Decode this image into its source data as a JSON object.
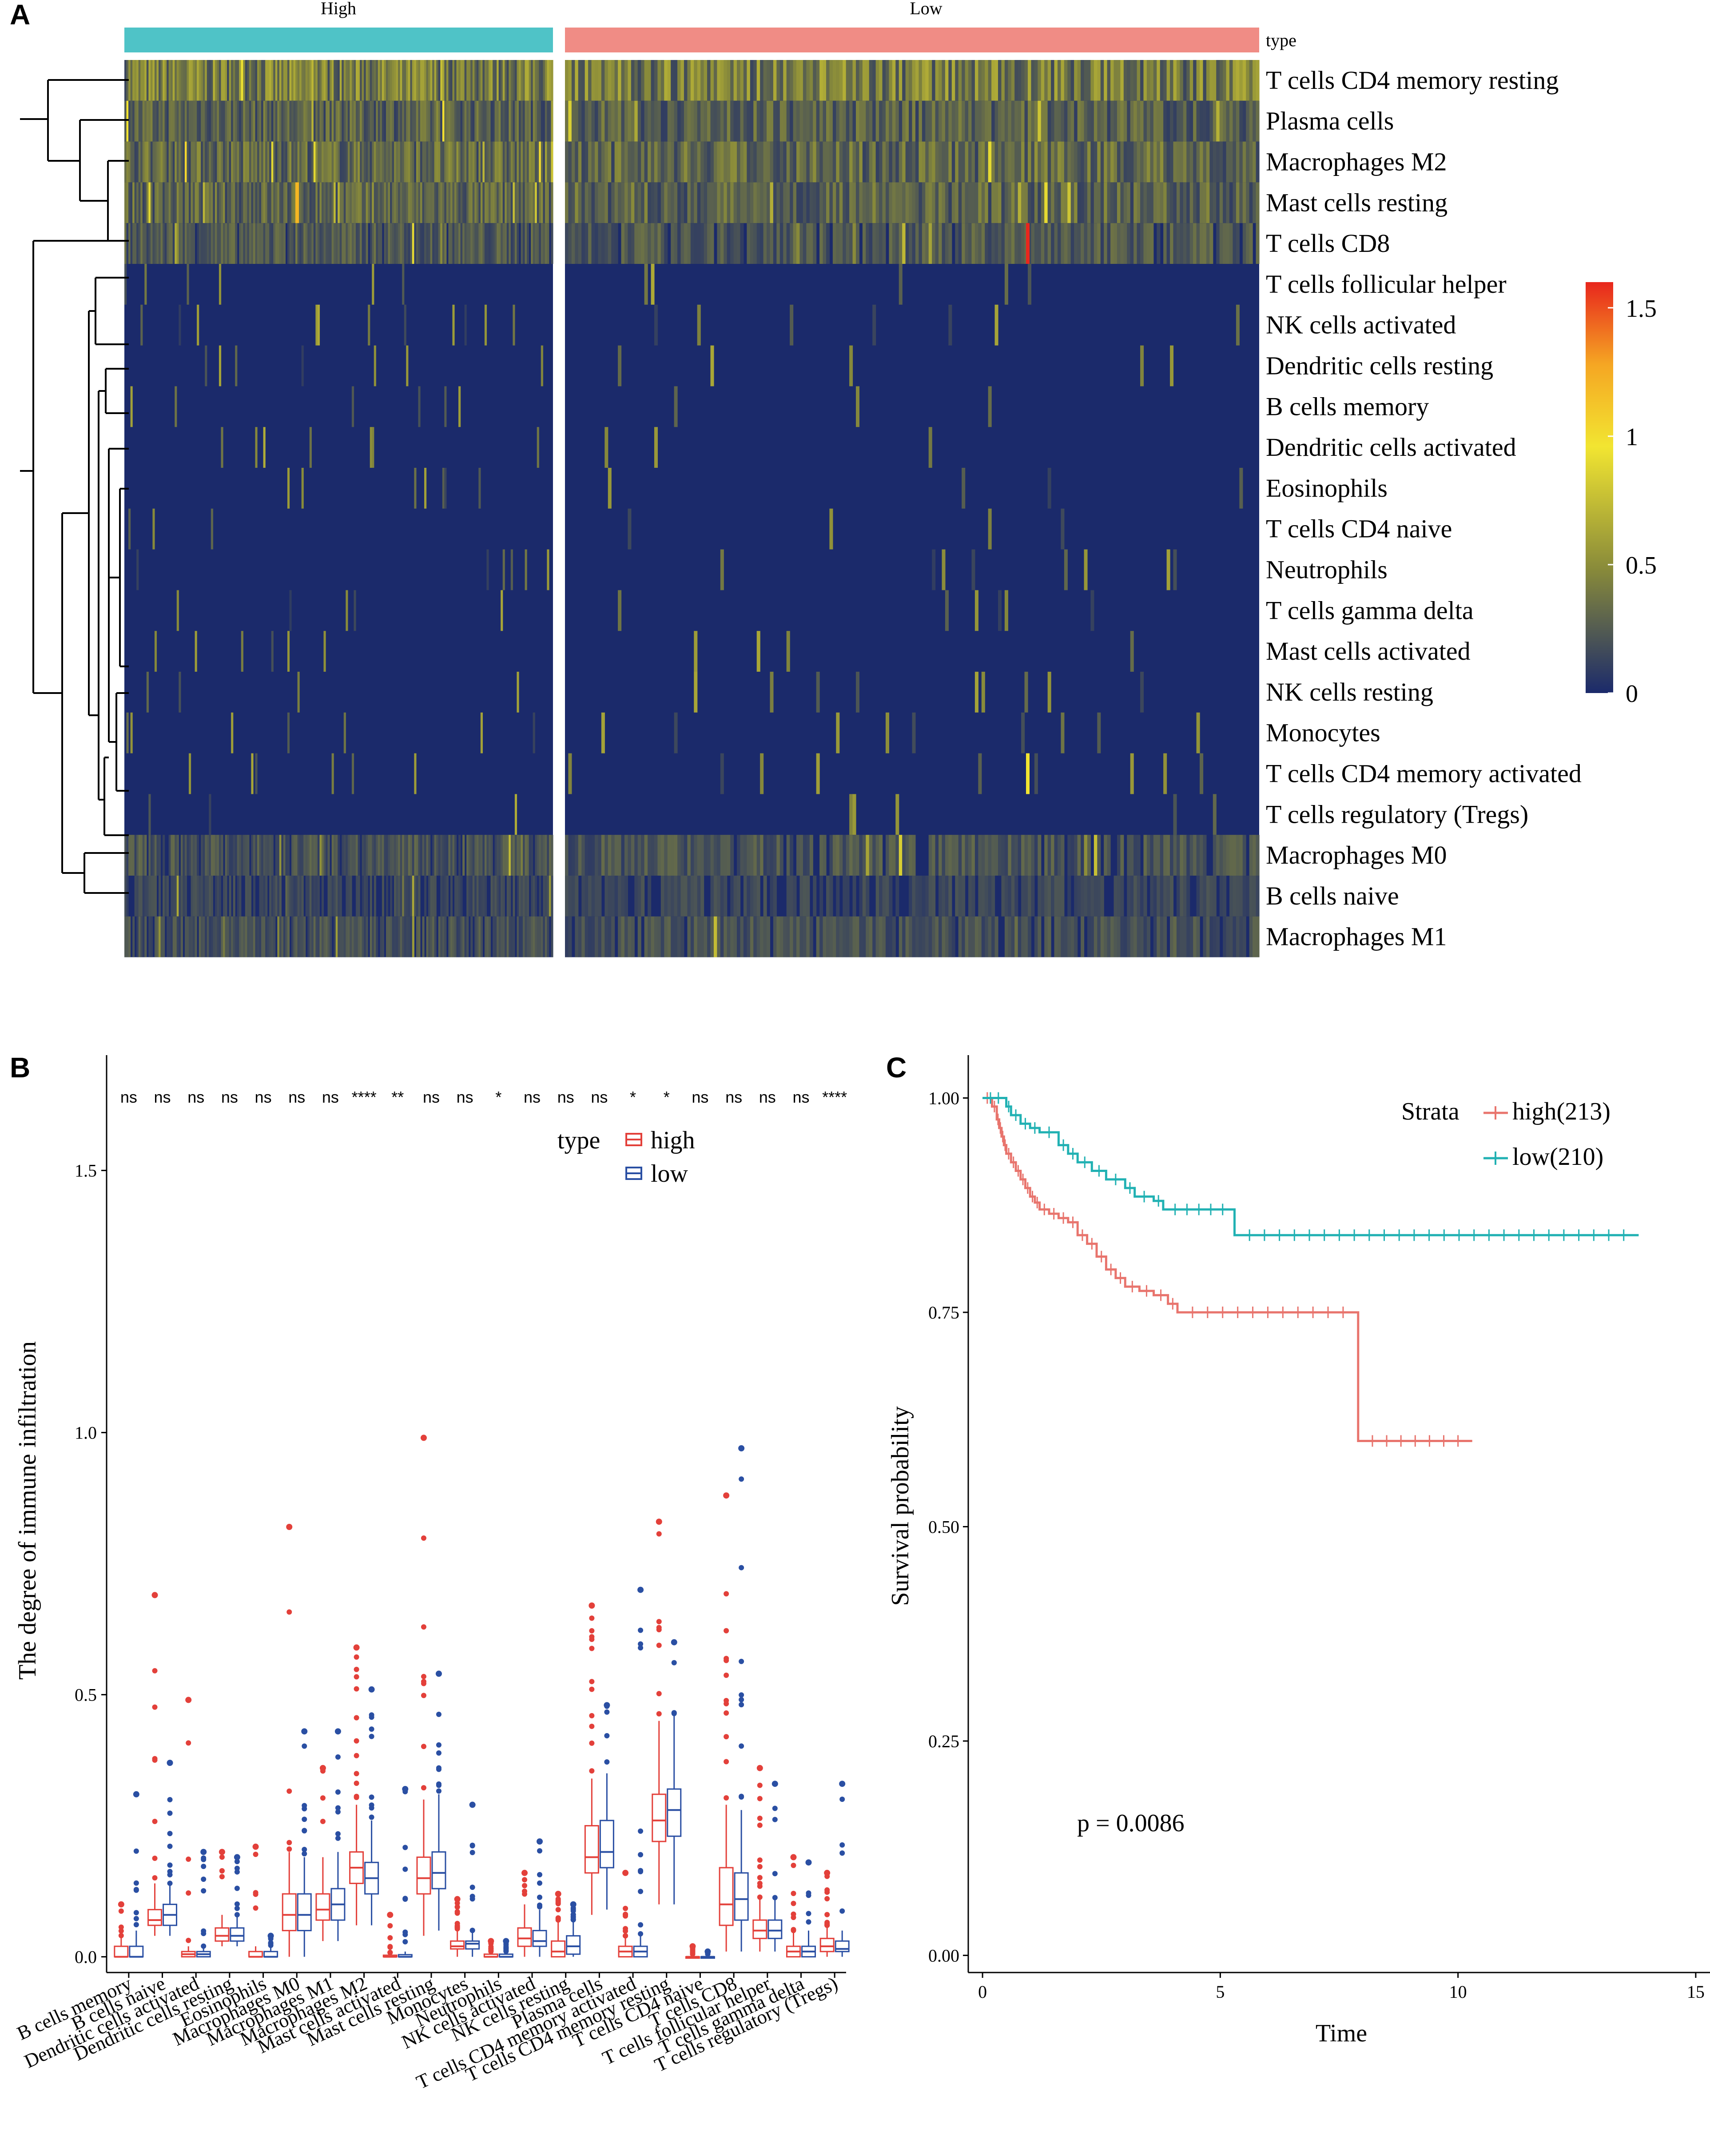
{
  "chart_data": [
    {
      "panel": "A",
      "type": "heatmap",
      "groups": [
        {
          "label": "High",
          "color": "#4fc3c7",
          "samples": 213
        },
        {
          "label": "Low",
          "color": "#f08c85",
          "samples": 210
        }
      ],
      "annotation_label": "type",
      "rows": [
        "T cells CD4 memory resting",
        "Plasma cells",
        "Macrophages M2",
        "Mast cells resting",
        "T cells CD8",
        "T cells follicular helper",
        "NK cells activated",
        "Dendritic cells resting",
        "B cells memory",
        "Dendritic cells activated",
        "Eosinophils",
        "T cells CD4 naive",
        "Neutrophils",
        "T cells gamma delta",
        "Mast cells activated",
        "NK cells resting",
        "Monocytes",
        "T cells CD4 memory activated",
        "T cells regulatory (Tregs)",
        "Macrophages M0",
        "B cells naive",
        "Macrophages M1"
      ],
      "row_intensity": [
        0.45,
        0.3,
        0.35,
        0.32,
        0.25,
        0.06,
        0.06,
        0.04,
        0.05,
        0.04,
        0.03,
        0.03,
        0.03,
        0.03,
        0.04,
        0.04,
        0.05,
        0.05,
        0.06,
        0.22,
        0.15,
        0.2
      ],
      "colorbar": {
        "ticks": [
          "1.5",
          "1",
          "0.5",
          "0"
        ],
        "values": [
          1.5,
          1,
          0.5,
          0
        ],
        "min": 0,
        "max": 1.6,
        "colors": [
          "#1b2a6b",
          "#888a3a",
          "#f2e531",
          "#f5a623",
          "#e8261d"
        ]
      }
    },
    {
      "panel": "B",
      "type": "box",
      "ylabel": "The degree of immune infiltration",
      "yticks": [
        "0.0",
        "0.5",
        "1.0",
        "1.5"
      ],
      "ytick_values": [
        0.0,
        0.5,
        1.0,
        1.5
      ],
      "ylim": [
        -0.03,
        1.72
      ],
      "legend": {
        "title": "type",
        "entries": [
          "high",
          "low"
        ]
      },
      "colors": {
        "high": "#e3403a",
        "low": "#2a4fa3"
      },
      "categories": [
        "B cells memory",
        "B cells naive",
        "Dendritic cells activated",
        "Dendritic cells resting",
        "Eosinophils",
        "Macrophages M0",
        "Macrophages M1",
        "Macrophages M2",
        "Mast cells activated",
        "Mast cells resting",
        "Monocytes",
        "Neutrophils",
        "NK cells activated",
        "NK cells resting",
        "Plasma cells",
        "T cells CD4 memory activated",
        "T cells CD4 memory resting",
        "T cells CD4 naive",
        "T cells CD8",
        "T cells follicular helper",
        "T cells gamma delta",
        "T cells regulatory (Tregs)"
      ],
      "significance": [
        "ns",
        "ns",
        "ns",
        "ns",
        "ns",
        "ns",
        "ns",
        "****",
        "**",
        "ns",
        "ns",
        "*",
        "ns",
        "ns",
        "ns",
        "*",
        "*",
        "ns",
        "ns",
        "ns",
        "ns",
        "****"
      ],
      "series": [
        {
          "name": "high",
          "boxes": [
            [
              0,
              0,
              0,
              0.02,
              0.04
            ],
            [
              0.04,
              0.06,
              0.07,
              0.09,
              0.14
            ],
            [
              0,
              0,
              0.005,
              0.01,
              0.02
            ],
            [
              0.02,
              0.03,
              0.04,
              0.055,
              0.08
            ],
            [
              0,
              0,
              0,
              0.01,
              0.02
            ],
            [
              0,
              0.05,
              0.08,
              0.12,
              0.2
            ],
            [
              0.03,
              0.07,
              0.09,
              0.12,
              0.19
            ],
            [
              0.06,
              0.14,
              0.17,
              0.2,
              0.29
            ],
            [
              0,
              0,
              0,
              0.003,
              0.008
            ],
            [
              0.04,
              0.12,
              0.15,
              0.19,
              0.3
            ],
            [
              0,
              0.015,
              0.02,
              0.03,
              0.05
            ],
            [
              0,
              0,
              0,
              0.005,
              0.01
            ],
            [
              0,
              0.02,
              0.035,
              0.055,
              0.1
            ],
            [
              0,
              0,
              0.01,
              0.03,
              0.07
            ],
            [
              0.08,
              0.16,
              0.19,
              0.25,
              0.34
            ],
            [
              0,
              0,
              0.01,
              0.02,
              0.04
            ],
            [
              0.1,
              0.22,
              0.26,
              0.31,
              0.45
            ],
            [
              0,
              0,
              0,
              0,
              0.005
            ],
            [
              0.01,
              0.06,
              0.1,
              0.17,
              0.29
            ],
            [
              0.01,
              0.035,
              0.05,
              0.07,
              0.11
            ],
            [
              0,
              0,
              0.01,
              0.02,
              0.05
            ],
            [
              0,
              0.01,
              0.02,
              0.035,
              0.06
            ]
          ],
          "outliers": [
            0.1,
            0.69,
            0.49,
            0.2,
            0.21,
            0.82,
            0.36,
            0.59,
            0.08,
            0.99,
            0.11,
            0.03,
            0.16,
            0.12,
            0.67,
            0.16,
            0.83,
            0.02,
            0.88,
            0.36,
            0.19,
            0.16
          ]
        },
        {
          "name": "low",
          "boxes": [
            [
              0,
              0,
              0,
              0.02,
              0.05
            ],
            [
              0.04,
              0.06,
              0.08,
              0.1,
              0.14
            ],
            [
              0,
              0,
              0.005,
              0.01,
              0.02
            ],
            [
              0.02,
              0.03,
              0.04,
              0.055,
              0.08
            ],
            [
              0,
              0,
              0,
              0.01,
              0.02
            ],
            [
              0,
              0.05,
              0.08,
              0.12,
              0.19
            ],
            [
              0.03,
              0.07,
              0.1,
              0.13,
              0.2
            ],
            [
              0.06,
              0.12,
              0.15,
              0.18,
              0.26
            ],
            [
              0,
              0,
              0,
              0.004,
              0.01
            ],
            [
              0.05,
              0.13,
              0.16,
              0.2,
              0.31
            ],
            [
              0,
              0.015,
              0.025,
              0.03,
              0.05
            ],
            [
              0,
              0,
              0,
              0.005,
              0.01
            ],
            [
              0,
              0.02,
              0.03,
              0.05,
              0.09
            ],
            [
              0,
              0.005,
              0.02,
              0.04,
              0.07
            ],
            [
              0.09,
              0.17,
              0.2,
              0.26,
              0.35
            ],
            [
              0,
              0,
              0.01,
              0.02,
              0.04
            ],
            [
              0.1,
              0.23,
              0.28,
              0.32,
              0.46
            ],
            [
              0,
              0,
              0,
              0,
              0.005
            ],
            [
              0.01,
              0.07,
              0.11,
              0.16,
              0.28
            ],
            [
              0.01,
              0.035,
              0.05,
              0.07,
              0.11
            ],
            [
              0,
              0,
              0.01,
              0.02,
              0.05
            ],
            [
              0,
              0.01,
              0.015,
              0.03,
              0.05
            ]
          ],
          "outliers": [
            0.31,
            0.37,
            0.2,
            0.19,
            0.04,
            0.43,
            0.43,
            0.51,
            0.32,
            0.54,
            0.29,
            0.03,
            0.22,
            0.1,
            0.48,
            0.7,
            0.6,
            0.01,
            0.97,
            0.33,
            0.18,
            0.33
          ]
        }
      ]
    },
    {
      "panel": "C",
      "type": "line",
      "title": "",
      "xlabel": "Time",
      "ylabel": "Survival probability",
      "xlim": [
        -0.3,
        15.3
      ],
      "ylim": [
        -0.02,
        1.05
      ],
      "xticks": [
        "0",
        "5",
        "10",
        "15"
      ],
      "xtick_values": [
        0,
        5,
        10,
        15
      ],
      "yticks": [
        "0.00",
        "0.25",
        "0.50",
        "0.75",
        "1.00"
      ],
      "ytick_values": [
        0,
        0.25,
        0.5,
        0.75,
        1
      ],
      "legend": {
        "title": "Strata",
        "entries": [
          "high(213)",
          "low(210)"
        ]
      },
      "annotation": "p = 0.0086",
      "series": [
        {
          "name": "high(213)",
          "color": "#e8746d",
          "x": [
            0,
            0.2,
            0.3,
            0.35,
            0.4,
            0.45,
            0.5,
            0.6,
            0.7,
            0.8,
            0.9,
            1.0,
            1.1,
            1.2,
            1.4,
            1.6,
            1.8,
            2.0,
            2.2,
            2.4,
            2.6,
            2.8,
            3.0,
            3.3,
            3.6,
            3.9,
            4.1,
            7.9,
            10.3
          ],
          "y": [
            1.0,
            0.99,
            0.975,
            0.965,
            0.955,
            0.945,
            0.935,
            0.925,
            0.915,
            0.905,
            0.895,
            0.885,
            0.878,
            0.87,
            0.865,
            0.86,
            0.855,
            0.84,
            0.83,
            0.815,
            0.8,
            0.79,
            0.78,
            0.775,
            0.77,
            0.76,
            0.75,
            0.6,
            0.6
          ]
        },
        {
          "name": "low(210)",
          "color": "#21b1b3",
          "x": [
            0,
            0.5,
            0.6,
            0.8,
            1.0,
            1.2,
            1.6,
            1.8,
            2.0,
            2.3,
            2.6,
            3.0,
            3.2,
            3.6,
            3.8,
            5.3,
            13.8
          ],
          "y": [
            1.0,
            0.99,
            0.98,
            0.97,
            0.965,
            0.96,
            0.945,
            0.935,
            0.925,
            0.915,
            0.905,
            0.895,
            0.885,
            0.88,
            0.87,
            0.84,
            0.84
          ]
        }
      ]
    }
  ],
  "panels": {
    "a": "A",
    "b": "B",
    "c": "C"
  }
}
